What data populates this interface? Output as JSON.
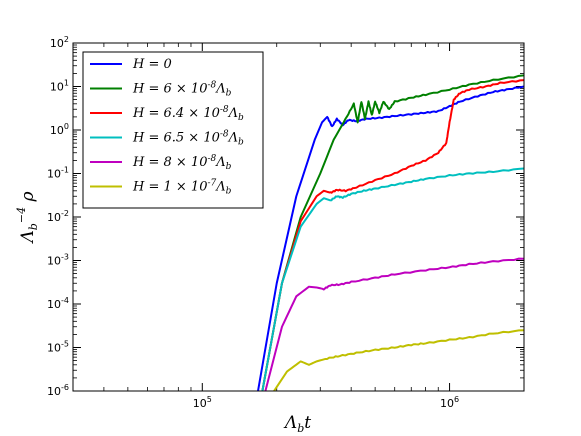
{
  "chart_data": {
    "type": "line",
    "xscale": "log",
    "yscale": "log",
    "xlim": [
      30000,
      2000000
    ],
    "ylim": [
      1e-06,
      100
    ],
    "xlabel": "Λ_b t",
    "ylabel": "Λ_b^{-4} ρ",
    "x_ticks": [
      {
        "value": 100000,
        "base": "10",
        "exp": "5"
      },
      {
        "value": 1000000,
        "base": "10",
        "exp": "6"
      }
    ],
    "y_ticks": [
      {
        "value": 100,
        "base": "10",
        "exp": "2"
      },
      {
        "value": 10,
        "base": "10",
        "exp": "1"
      },
      {
        "value": 1,
        "base": "10",
        "exp": "0"
      },
      {
        "value": 0.1,
        "base": "10",
        "exp": "-1"
      },
      {
        "value": 0.01,
        "base": "10",
        "exp": "-2"
      },
      {
        "value": 0.001,
        "base": "10",
        "exp": "-3"
      },
      {
        "value": 0.0001,
        "base": "10",
        "exp": "-4"
      },
      {
        "value": 1e-05,
        "base": "10",
        "exp": "-5"
      },
      {
        "value": 1e-06,
        "base": "10",
        "exp": "-6"
      }
    ],
    "legend": {
      "position": "top-left"
    },
    "grid": false,
    "series": [
      {
        "name": "H = 0",
        "legend": {
          "main": "H = 0",
          "sup": "",
          "tail": ""
        },
        "color": "#0000ff",
        "points": [
          [
            168000,
            1e-06
          ],
          [
            200000,
            0.0003
          ],
          [
            240000,
            0.03
          ],
          [
            285000,
            0.6
          ],
          [
            305000,
            1.5
          ],
          [
            320000,
            2.0
          ],
          [
            335000,
            1.2
          ],
          [
            350000,
            1.8
          ],
          [
            370000,
            1.3
          ],
          [
            390000,
            1.7
          ],
          [
            420000,
            1.6
          ],
          [
            460000,
            1.8
          ],
          [
            520000,
            1.9
          ],
          [
            600000,
            2.1
          ],
          [
            700000,
            2.3
          ],
          [
            800000,
            2.5
          ],
          [
            900000,
            2.7
          ],
          [
            1000000,
            3.5
          ],
          [
            1100000,
            4.5
          ],
          [
            1300000,
            6
          ],
          [
            1500000,
            7.5
          ],
          [
            1700000,
            8.5
          ],
          [
            2000000,
            10
          ]
        ]
      },
      {
        "name": "H = 6 × 10^-8 Λ_b",
        "legend": {
          "main": "H = 6 × 10",
          "sup": "-8",
          "tail": "Λ_b"
        },
        "color": "#008000",
        "points": [
          [
            175000,
            1e-06
          ],
          [
            210000,
            0.0003
          ],
          [
            250000,
            0.01
          ],
          [
            300000,
            0.1
          ],
          [
            340000,
            0.6
          ],
          [
            380000,
            1.8
          ],
          [
            410000,
            4.0
          ],
          [
            425000,
            1.5
          ],
          [
            440000,
            4.5
          ],
          [
            455000,
            1.8
          ],
          [
            470000,
            4.5
          ],
          [
            485000,
            2.2
          ],
          [
            500000,
            4.5
          ],
          [
            520000,
            2.5
          ],
          [
            540000,
            4.5
          ],
          [
            570000,
            3.0
          ],
          [
            600000,
            4.5
          ],
          [
            700000,
            5.5
          ],
          [
            800000,
            6.5
          ],
          [
            1000000,
            8.5
          ],
          [
            1200000,
            11
          ],
          [
            1500000,
            14
          ],
          [
            2000000,
            18
          ]
        ]
      },
      {
        "name": "H = 6.4 × 10^-8 Λ_b",
        "legend": {
          "main": "H = 6.4 × 10",
          "sup": "-8",
          "tail": "Λ_b"
        },
        "color": "#ff0000",
        "points": [
          [
            175000,
            1e-06
          ],
          [
            210000,
            0.0003
          ],
          [
            250000,
            0.008
          ],
          [
            290000,
            0.03
          ],
          [
            310000,
            0.04
          ],
          [
            330000,
            0.036
          ],
          [
            350000,
            0.042
          ],
          [
            380000,
            0.04
          ],
          [
            420000,
            0.048
          ],
          [
            500000,
            0.07
          ],
          [
            600000,
            0.1
          ],
          [
            700000,
            0.15
          ],
          [
            800000,
            0.2
          ],
          [
            900000,
            0.3
          ],
          [
            970000,
            0.5
          ],
          [
            1000000,
            1.5
          ],
          [
            1040000,
            5.0
          ],
          [
            1100000,
            7.0
          ],
          [
            1200000,
            8.5
          ],
          [
            1400000,
            10
          ],
          [
            1600000,
            12
          ],
          [
            2000000,
            14
          ]
        ]
      },
      {
        "name": "H = 6.5 × 10^-8 Λ_b",
        "legend": {
          "main": "H = 6.5 × 10",
          "sup": "-8",
          "tail": "Λ_b"
        },
        "color": "#00bfbf",
        "points": [
          [
            175000,
            1e-06
          ],
          [
            210000,
            0.0003
          ],
          [
            250000,
            0.006
          ],
          [
            290000,
            0.02
          ],
          [
            310000,
            0.027
          ],
          [
            330000,
            0.024
          ],
          [
            350000,
            0.03
          ],
          [
            370000,
            0.028
          ],
          [
            400000,
            0.034
          ],
          [
            450000,
            0.04
          ],
          [
            500000,
            0.045
          ],
          [
            600000,
            0.055
          ],
          [
            700000,
            0.065
          ],
          [
            800000,
            0.075
          ],
          [
            1000000,
            0.09
          ],
          [
            1200000,
            0.1
          ],
          [
            1500000,
            0.11
          ],
          [
            2000000,
            0.13
          ]
        ]
      },
      {
        "name": "H = 8 × 10^-8 Λ_b",
        "legend": {
          "main": "H = 8 × 10",
          "sup": "-8",
          "tail": "Λ_b"
        },
        "color": "#bf00bf",
        "points": [
          [
            180000,
            1e-06
          ],
          [
            210000,
            3e-05
          ],
          [
            240000,
            0.00015
          ],
          [
            270000,
            0.00025
          ],
          [
            290000,
            0.00024
          ],
          [
            310000,
            0.00022
          ],
          [
            330000,
            0.00027
          ],
          [
            360000,
            0.00028
          ],
          [
            400000,
            0.00032
          ],
          [
            500000,
            0.0004
          ],
          [
            600000,
            0.00048
          ],
          [
            800000,
            0.0006
          ],
          [
            1000000,
            0.0007
          ],
          [
            1200000,
            0.00082
          ],
          [
            1500000,
            0.00095
          ],
          [
            2000000,
            0.0011
          ]
        ]
      },
      {
        "name": "H = 1 × 10^-7 Λ_b",
        "legend": {
          "main": "H = 1 × 10",
          "sup": "-7",
          "tail": "Λ_b"
        },
        "color": "#bfbf00",
        "points": [
          [
            195000,
            1e-06
          ],
          [
            220000,
            2.8e-06
          ],
          [
            250000,
            4.8e-06
          ],
          [
            270000,
            4e-06
          ],
          [
            290000,
            4.8e-06
          ],
          [
            320000,
            5.6e-06
          ],
          [
            360000,
            6.4e-06
          ],
          [
            420000,
            7.5e-06
          ],
          [
            500000,
            8.8e-06
          ],
          [
            600000,
            1e-05
          ],
          [
            700000,
            1.15e-05
          ],
          [
            800000,
            1.25e-05
          ],
          [
            1000000,
            1.5e-05
          ],
          [
            1200000,
            1.7e-05
          ],
          [
            1500000,
            2.1e-05
          ],
          [
            2000000,
            2.5e-05
          ]
        ]
      }
    ]
  }
}
